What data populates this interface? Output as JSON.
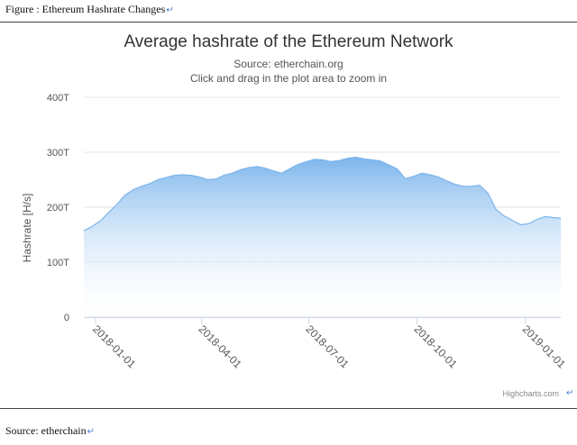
{
  "doc": {
    "caption": "Figure : Ethereum Hashrate Changes",
    "source": "Source: etherchain",
    "return_mark": "↵"
  },
  "chart_data": {
    "type": "area",
    "title": "Average hashrate of the Ethereum Network",
    "subtitle": "Source: etherchain.org",
    "subtitle2": "Click and drag in the plot area to zoom in",
    "xlabel": "",
    "ylabel": "Hashrate [H/s]",
    "ylim": [
      0,
      400
    ],
    "yticks": [
      {
        "value": 0,
        "label": "0"
      },
      {
        "value": 100,
        "label": "100T"
      },
      {
        "value": 200,
        "label": "200T"
      },
      {
        "value": 300,
        "label": "300T"
      },
      {
        "value": 400,
        "label": "400T"
      }
    ],
    "xlim": [
      "2017-12-22",
      "2019-01-31"
    ],
    "xticks": [
      {
        "value": "2018-01-01",
        "label": "2018-01-01"
      },
      {
        "value": "2018-04-01",
        "label": "2018-04-01"
      },
      {
        "value": "2018-07-01",
        "label": "2018-07-01"
      },
      {
        "value": "2018-10-01",
        "label": "2018-10-01"
      },
      {
        "value": "2019-01-01",
        "label": "2019-01-01"
      }
    ],
    "grid": true,
    "legend": "none",
    "credits": "Highcharts.com",
    "colors": {
      "area_top": "#7cb5ec",
      "area_bottom": "#ffffff",
      "line": "#7cb5ec",
      "grid": "#e6e6e6"
    },
    "series": [
      {
        "x": [
          "2017-12-22",
          "2017-12-29",
          "2018-01-05",
          "2018-01-12",
          "2018-01-19",
          "2018-01-26",
          "2018-02-02",
          "2018-02-09",
          "2018-02-16",
          "2018-02-23",
          "2018-03-02",
          "2018-03-09",
          "2018-03-16",
          "2018-03-23",
          "2018-03-30",
          "2018-04-06",
          "2018-04-13",
          "2018-04-20",
          "2018-04-27",
          "2018-05-04",
          "2018-05-11",
          "2018-05-18",
          "2018-05-25",
          "2018-06-01",
          "2018-06-08",
          "2018-06-15",
          "2018-06-22",
          "2018-06-29",
          "2018-07-06",
          "2018-07-13",
          "2018-07-20",
          "2018-07-27",
          "2018-08-03",
          "2018-08-10",
          "2018-08-17",
          "2018-08-24",
          "2018-08-31",
          "2018-09-07",
          "2018-09-14",
          "2018-09-21",
          "2018-09-28",
          "2018-10-05",
          "2018-10-12",
          "2018-10-19",
          "2018-10-26",
          "2018-11-02",
          "2018-11-09",
          "2018-11-16",
          "2018-11-23",
          "2018-11-30",
          "2018-12-07",
          "2018-12-14",
          "2018-12-21",
          "2018-12-28",
          "2019-01-04",
          "2019-01-11",
          "2019-01-18",
          "2019-01-25",
          "2019-01-31"
        ],
        "values": [
          157,
          165,
          175,
          190,
          205,
          222,
          232,
          238,
          243,
          250,
          254,
          258,
          259,
          258,
          255,
          250,
          251,
          258,
          262,
          268,
          272,
          274,
          271,
          266,
          262,
          270,
          278,
          283,
          287,
          286,
          283,
          285,
          289,
          291,
          288,
          286,
          284,
          277,
          270,
          252,
          256,
          262,
          259,
          255,
          248,
          242,
          238,
          238,
          240,
          226,
          196,
          184,
          176,
          168,
          170,
          178,
          183,
          181,
          180
        ]
      }
    ]
  }
}
